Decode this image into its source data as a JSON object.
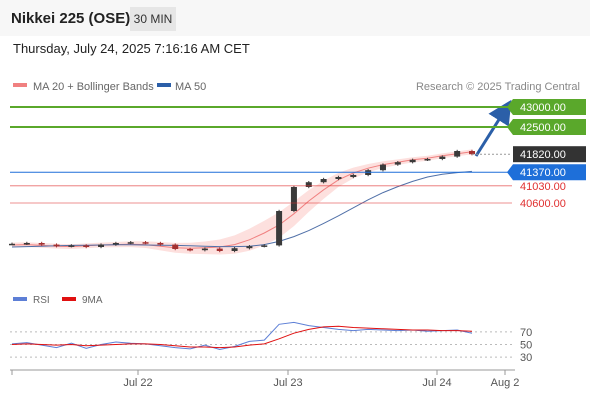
{
  "header": {
    "title": "Nikkei 225 (OSE)",
    "timeframe": "30 MIN",
    "datetime": "Thursday, July 24, 2025 7:16:16 AM CET"
  },
  "legend": {
    "ma20": "MA 20 + Bollinger Bands",
    "ma50": "MA 50",
    "credit": "Research © 2025 Trading Central",
    "rsi": "RSI",
    "rsi_ma": "9MA"
  },
  "colors": {
    "resistance": "#5aa82b",
    "current": "#333333",
    "pivot": "#1e6fd9",
    "support": "#e03030",
    "ma50": "#5070a8",
    "ma20": "#f08080",
    "band_fill": "#fde0de",
    "arrow": "#2b5fa8",
    "rsi": "#5d7fd6",
    "rsi_ma": "#e01010"
  },
  "chart_data": [
    {
      "type": "candlestick",
      "instrument": "Nikkei 225 (OSE)",
      "timeframe": "30 MIN",
      "x_ticks": [
        "Jul 22",
        "Jul 23",
        "Jul 24",
        "Aug 2"
      ],
      "levels": [
        {
          "value": "43000.00",
          "kind": "resistance"
        },
        {
          "value": "42500.00",
          "kind": "resistance"
        },
        {
          "value": "41820.00",
          "kind": "current"
        },
        {
          "value": "41370.00",
          "kind": "pivot"
        },
        {
          "value": "41030.00",
          "kind": "support"
        },
        {
          "value": "40600.00",
          "kind": "support"
        }
      ],
      "ma20_series": [
        39550,
        39560,
        39540,
        39520,
        39510,
        39530,
        39550,
        39560,
        39570,
        39560,
        39520,
        39480,
        39470,
        39480,
        39500,
        39560,
        39680,
        39850,
        40050,
        40330,
        40650,
        40930,
        41180,
        41350,
        41470,
        41560,
        41620,
        41680,
        41720,
        41780,
        41830,
        41880
      ],
      "ma50_series": [
        39500,
        39510,
        39520,
        39530,
        39540,
        39545,
        39550,
        39555,
        39555,
        39550,
        39545,
        39540,
        39530,
        39520,
        39510,
        39510,
        39520,
        39560,
        39640,
        39760,
        39910,
        40090,
        40280,
        40480,
        40680,
        40860,
        41010,
        41140,
        41250,
        41320,
        41360,
        41390
      ],
      "close_series": [
        39580,
        39600,
        39560,
        39520,
        39540,
        39500,
        39560,
        39600,
        39620,
        39600,
        39560,
        39450,
        39420,
        39460,
        39400,
        39470,
        39520,
        39540,
        40400,
        41000,
        41120,
        41200,
        41250,
        41300,
        41420,
        41560,
        41620,
        41680,
        41700,
        41760,
        41900,
        41820
      ]
    },
    {
      "type": "line",
      "name": "RSI",
      "y_ticks": [
        "70",
        "50",
        "30"
      ],
      "rsi_series": [
        51,
        53,
        49,
        45,
        52,
        44,
        50,
        54,
        52,
        51,
        48,
        45,
        43,
        49,
        42,
        47,
        55,
        57,
        82,
        85,
        80,
        77,
        74,
        72,
        74,
        73,
        72,
        73,
        71,
        72,
        73,
        68
      ],
      "ma_series": [
        50,
        51,
        50,
        49,
        50,
        48,
        49,
        50,
        51,
        51,
        50,
        48,
        46,
        46,
        45,
        46,
        49,
        51,
        59,
        68,
        74,
        78,
        79,
        77,
        76,
        75,
        74,
        73,
        73,
        72,
        72,
        71
      ]
    }
  ]
}
